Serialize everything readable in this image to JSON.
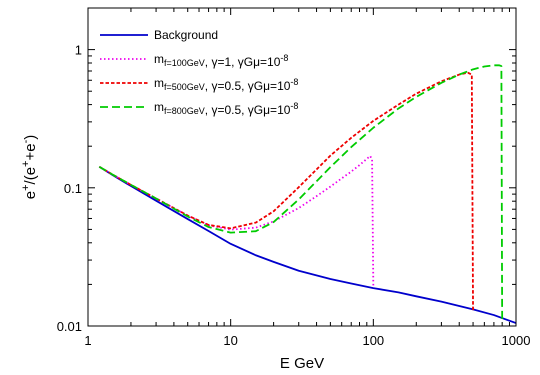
{
  "chart_data": {
    "type": "line",
    "xlabel": "E  GeV",
    "ylabel": "e+/(e+ +e-)",
    "xscale": "log",
    "yscale": "log",
    "xlim": [
      1,
      1000
    ],
    "ylim": [
      0.01,
      2
    ],
    "x_ticks": [
      {
        "value": 1,
        "label": "1"
      },
      {
        "value": 10,
        "label": "10"
      },
      {
        "value": 100,
        "label": "100"
      },
      {
        "value": 1000,
        "label": "1000"
      }
    ],
    "y_ticks": [
      {
        "value": 0.01,
        "label": "0.01"
      },
      {
        "value": 0.1,
        "label": "0.1"
      },
      {
        "value": 1,
        "label": "1"
      }
    ],
    "grid": false,
    "legend_position": "top-left",
    "series": [
      {
        "name": "Background",
        "color": "#0000cc",
        "dash": "solid",
        "x": [
          1.2,
          1.5,
          2,
          3,
          5,
          7,
          10,
          15,
          20,
          30,
          50,
          70,
          100,
          150,
          200,
          300,
          500,
          700,
          1000
        ],
        "y": [
          0.142,
          0.123,
          0.103,
          0.0807,
          0.0594,
          0.0487,
          0.0393,
          0.0325,
          0.0291,
          0.0251,
          0.0219,
          0.0203,
          0.0188,
          0.0175,
          0.0164,
          0.015,
          0.0132,
          0.012,
          0.0105
        ]
      },
      {
        "name": "m_f=100GeV, γ=1, γGμ=10^-8",
        "color": "#ee00ee",
        "dash": "dot",
        "x": [
          1.2,
          1.5,
          2,
          3,
          5,
          7,
          10,
          15,
          20,
          30,
          40,
          50,
          60,
          70,
          80,
          90,
          95,
          98,
          100
        ],
        "y": [
          0.142,
          0.124,
          0.105,
          0.0837,
          0.0629,
          0.0535,
          0.0498,
          0.0515,
          0.0571,
          0.0714,
          0.087,
          0.102,
          0.117,
          0.131,
          0.146,
          0.162,
          0.17,
          0.16,
          0.019
        ]
      },
      {
        "name": "m_f=500GeV, γ=0.5, γGμ=10^-8",
        "color": "#ee0000",
        "dash": "dash-short",
        "x": [
          1.2,
          1.5,
          2,
          3,
          5,
          7,
          10,
          15,
          20,
          30,
          50,
          70,
          100,
          150,
          200,
          300,
          400,
          460,
          490,
          500
        ],
        "y": [
          0.142,
          0.124,
          0.105,
          0.0837,
          0.063,
          0.0539,
          0.0509,
          0.056,
          0.0676,
          0.101,
          0.171,
          0.23,
          0.305,
          0.4,
          0.48,
          0.59,
          0.66,
          0.68,
          0.66,
          0.013
        ]
      },
      {
        "name": "m_f=800GeV, γ=0.5, γGμ=10^-8",
        "color": "#00cc00",
        "dash": "dash-long",
        "x": [
          1.2,
          1.5,
          2,
          3,
          5,
          7,
          10,
          15,
          20,
          30,
          50,
          70,
          100,
          150,
          200,
          300,
          400,
          500,
          600,
          700,
          760,
          790,
          800
        ],
        "y": [
          0.142,
          0.124,
          0.105,
          0.0837,
          0.062,
          0.052,
          0.0474,
          0.0485,
          0.0565,
          0.0824,
          0.141,
          0.197,
          0.272,
          0.375,
          0.455,
          0.575,
          0.66,
          0.72,
          0.755,
          0.77,
          0.77,
          0.76,
          0.0105
        ]
      }
    ]
  }
}
